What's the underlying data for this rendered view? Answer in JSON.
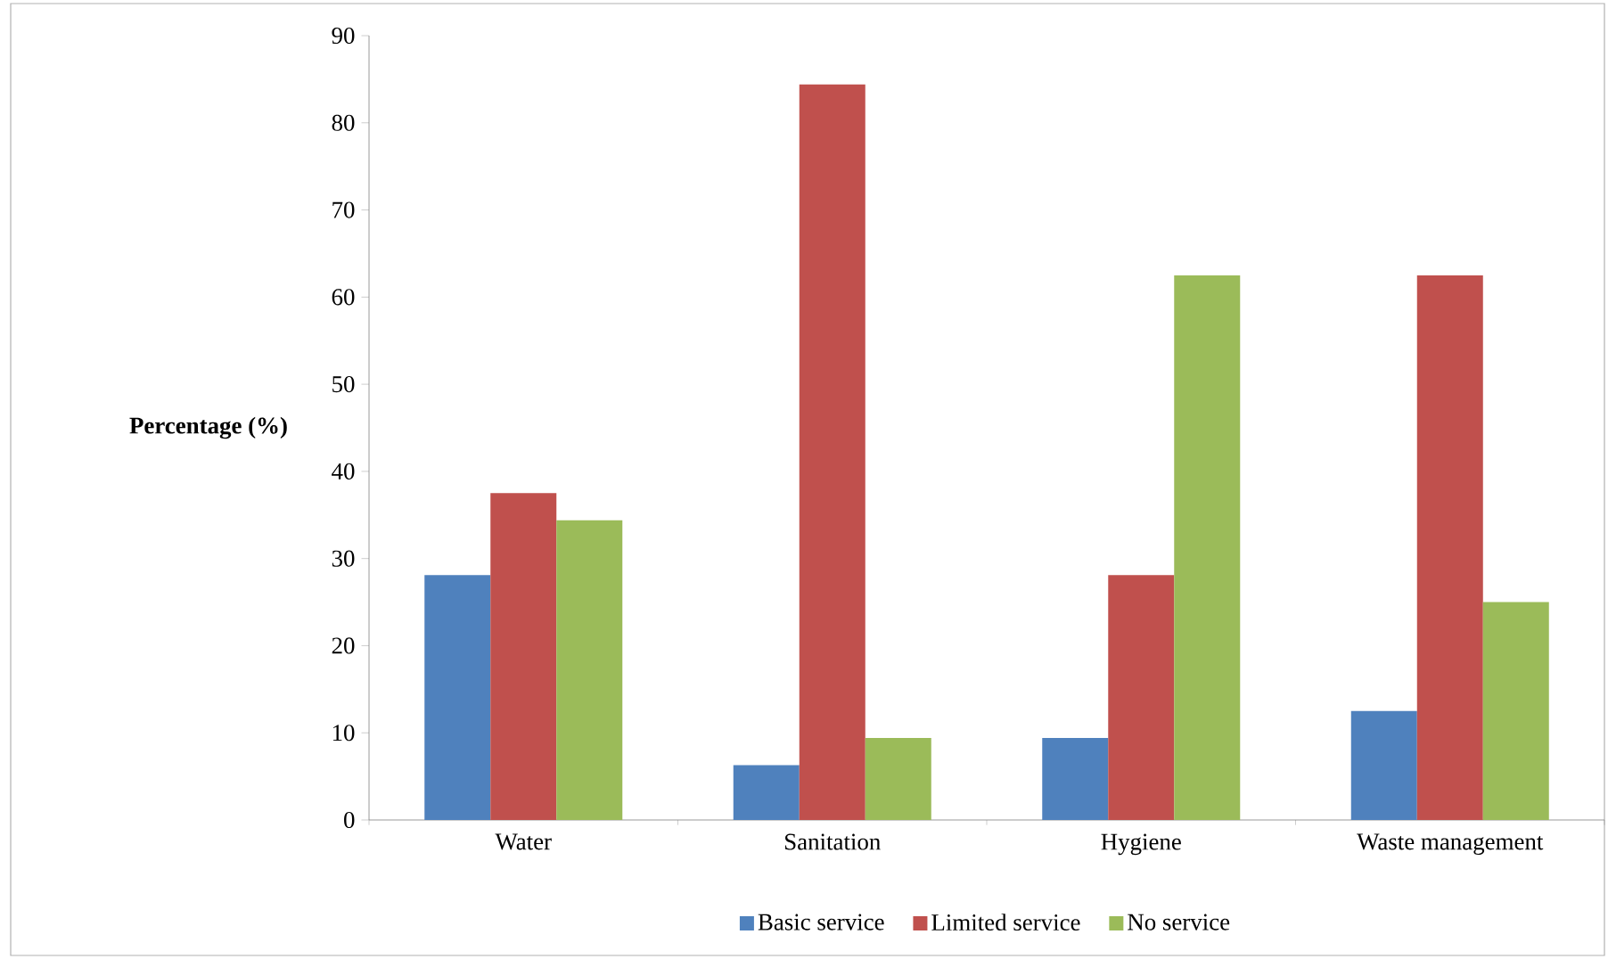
{
  "chart_data": {
    "type": "bar",
    "ylabel": "Percentage (%)",
    "categories": [
      "Water",
      "Sanitation",
      "Hygiene",
      "Waste management"
    ],
    "series": [
      {
        "name": "Basic service",
        "color": "#4f81bd",
        "values": [
          28.1,
          6.3,
          9.4,
          12.5
        ]
      },
      {
        "name": "Limited service",
        "color": "#c0504d",
        "values": [
          37.5,
          84.4,
          28.1,
          62.5
        ]
      },
      {
        "name": "No service",
        "color": "#9bbb59",
        "values": [
          34.4,
          9.4,
          62.5,
          25.0
        ]
      }
    ],
    "ylim": [
      0,
      90
    ],
    "yticks": [
      0,
      10,
      20,
      30,
      40,
      50,
      60,
      70,
      80,
      90
    ],
    "legend": "bottom"
  }
}
